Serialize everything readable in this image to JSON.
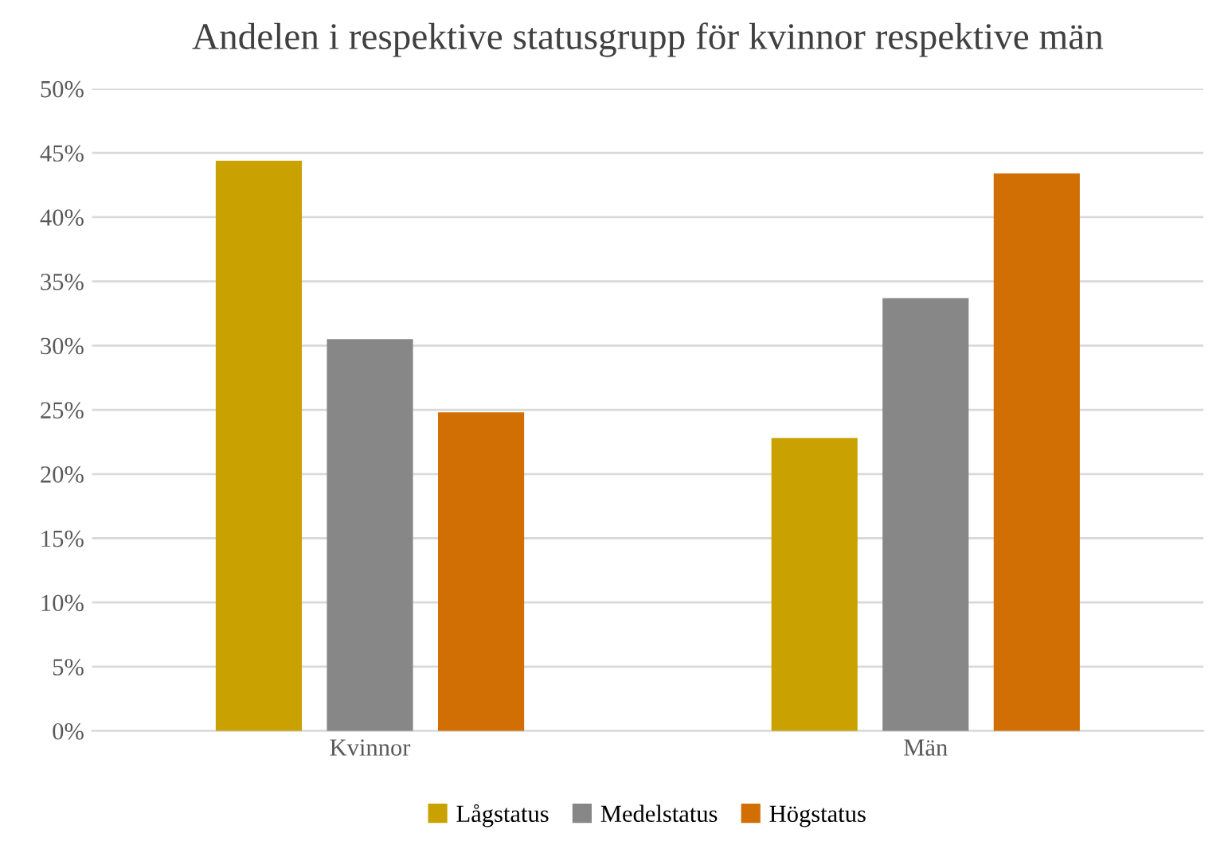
{
  "chart_data": {
    "type": "bar",
    "title": "Andelen i respektive statusgrupp för kvinnor respektive män",
    "categories": [
      "Kvinnor",
      "Män"
    ],
    "series": [
      {
        "name": "Lågstatus",
        "color": "#c9a100",
        "values": [
          44.4,
          22.8
        ]
      },
      {
        "name": "Medelstatus",
        "color": "#878787",
        "values": [
          30.5,
          33.7
        ]
      },
      {
        "name": "Högstatus",
        "color": "#d16f05",
        "values": [
          24.8,
          43.4
        ]
      }
    ],
    "ylim": [
      0,
      50
    ],
    "yticks": [
      {
        "value": 0,
        "label": "0%"
      },
      {
        "value": 5,
        "label": "5%"
      },
      {
        "value": 10,
        "label": "10%"
      },
      {
        "value": 15,
        "label": "15%"
      },
      {
        "value": 20,
        "label": "20%"
      },
      {
        "value": 25,
        "label": "25%"
      },
      {
        "value": 30,
        "label": "30%"
      },
      {
        "value": 35,
        "label": "35%"
      },
      {
        "value": 40,
        "label": "40%"
      },
      {
        "value": 45,
        "label": "45%"
      },
      {
        "value": 50,
        "label": "50%"
      }
    ],
    "grid": "y",
    "legend": "bottom"
  }
}
